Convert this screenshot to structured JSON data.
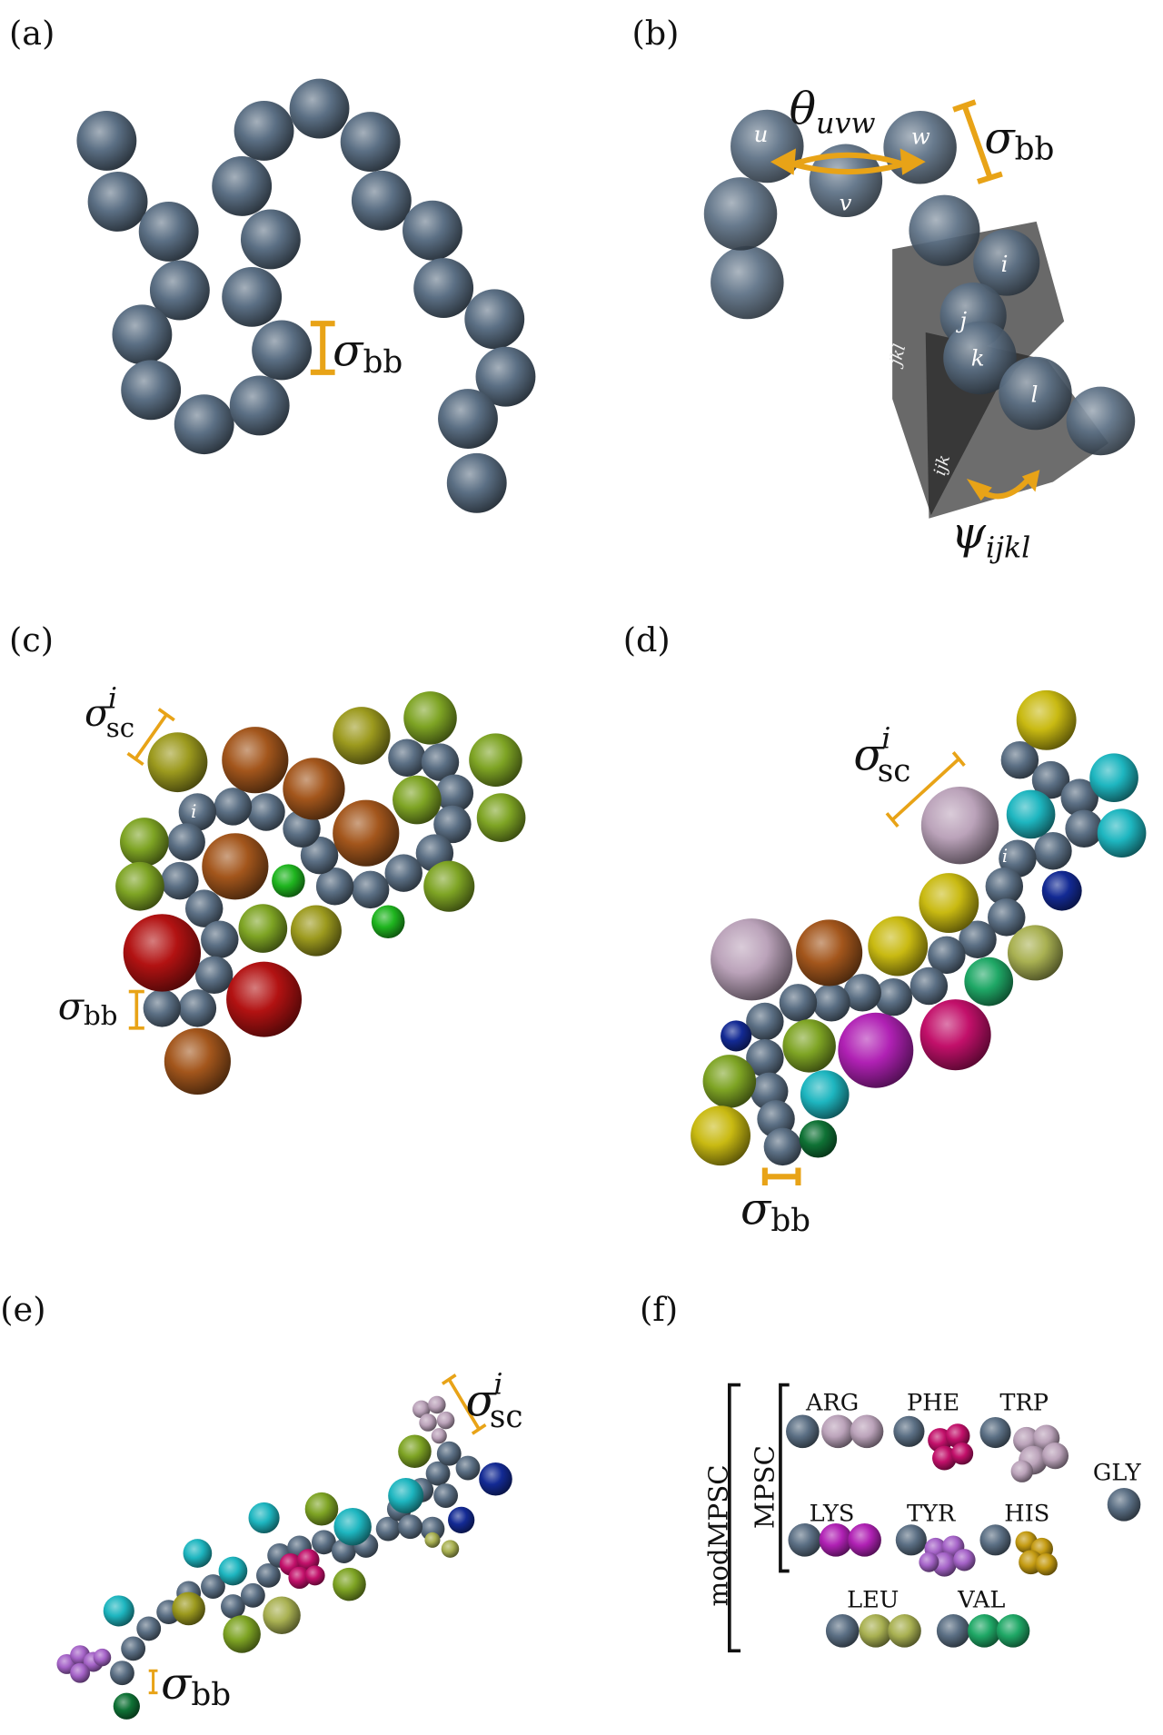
{
  "panels": {
    "a": {
      "label": "(a)"
    },
    "b": {
      "label": "(b)",
      "bead_labels": [
        "u",
        "v",
        "w",
        "i",
        "j",
        "k",
        "l"
      ],
      "plane_labels": [
        "jkl",
        "ijk"
      ]
    },
    "c": {
      "label": "(c)",
      "backbone_label": "i"
    },
    "d": {
      "label": "(d)",
      "backbone_label": "i"
    },
    "e": {
      "label": "(e)"
    },
    "f": {
      "label": "(f)",
      "groups": {
        "outer": "modMPSC",
        "inner": "MPSC"
      },
      "residues": [
        "ARG",
        "PHE",
        "TRP",
        "GLY",
        "LYS",
        "TYR",
        "HIS",
        "LEU",
        "VAL"
      ]
    }
  },
  "symbols": {
    "sigma": "σ",
    "bb": "bb",
    "sc": "sc",
    "sc_sup": "i",
    "theta": "θ",
    "theta_sub": "uvw",
    "psi": "ψ",
    "psi_sub": "ijkl"
  },
  "colors": {
    "backbone": "#5b6f84",
    "annotation": "#e8a317",
    "brown": "#a3561c",
    "olive": "#9c9a1e",
    "yellowgreen": "#7ea424",
    "green": "#1fb51f",
    "red": "#b21212",
    "lavender": "#bba3ba",
    "teal": "#1eb6c0",
    "navy": "#132a94",
    "magenta": "#b021b4",
    "crimson": "#c2106a",
    "seagreen": "#1fa866",
    "darkgreen": "#0f7235",
    "purple": "#a563c8",
    "paleolive": "#a9b152",
    "gold": "#c49b12",
    "yellow": "#c9ba12"
  }
}
